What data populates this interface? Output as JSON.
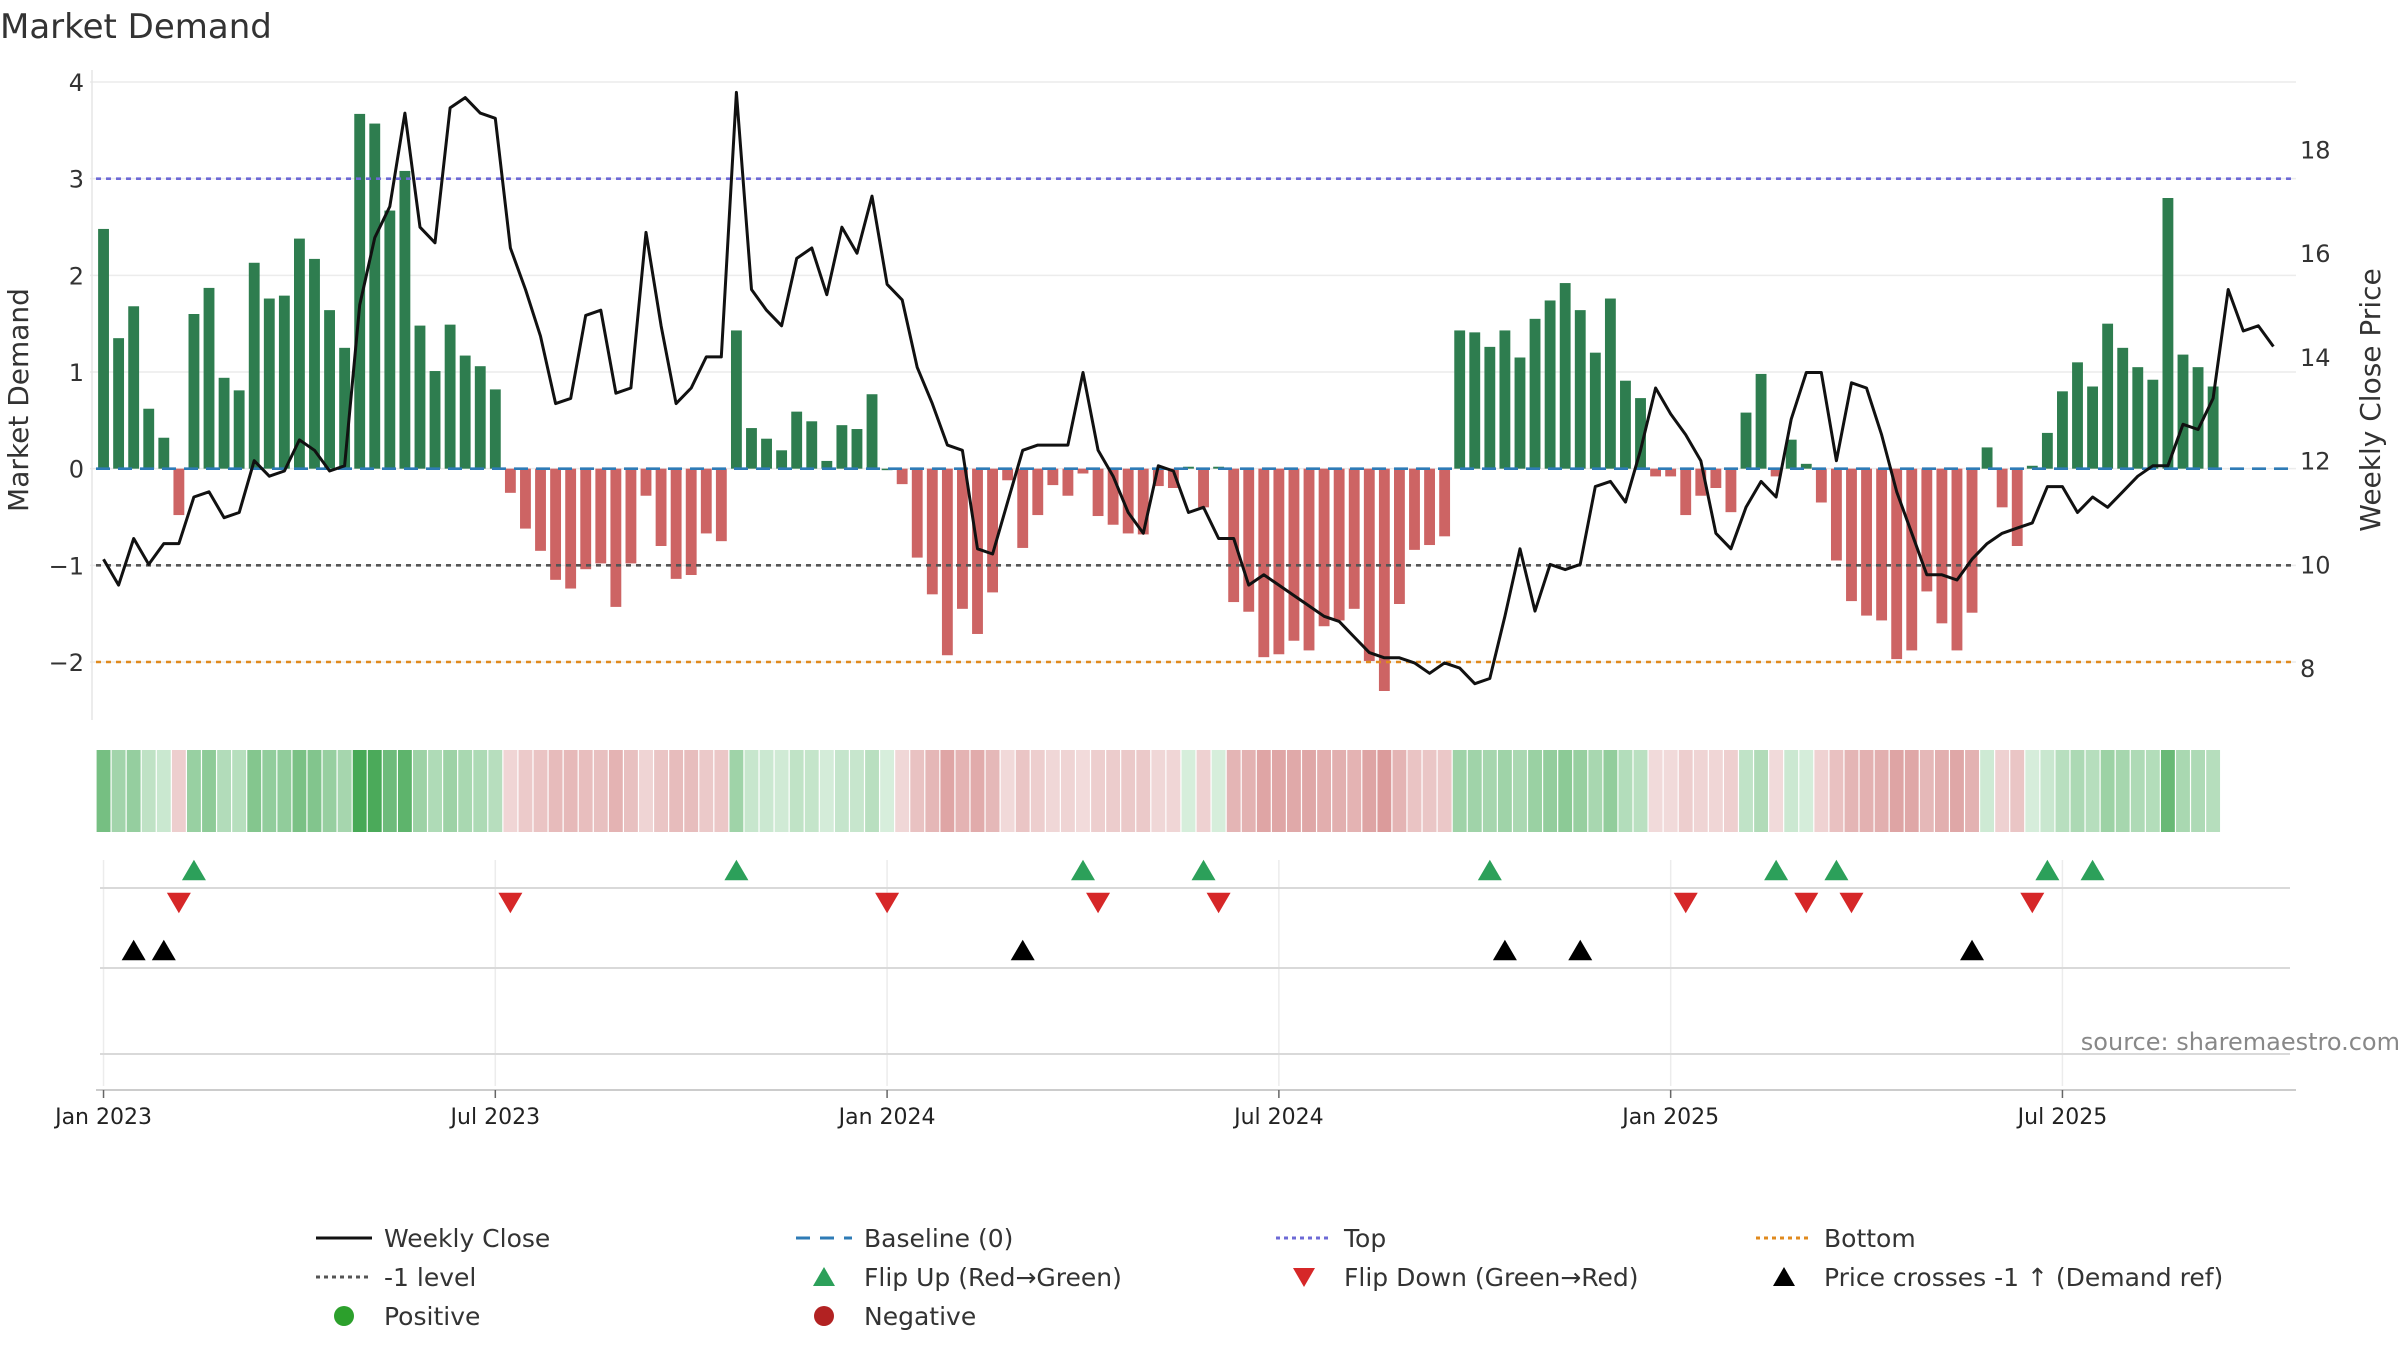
{
  "chart_data": {
    "type": "bar+line",
    "title": "Market Demand",
    "y_left_label": "Market Demand",
    "y_right_label": "Weekly Close Price",
    "y_left_ticks": [
      "4",
      "3",
      "2",
      "1",
      "0",
      "−1",
      "−2"
    ],
    "y_right_ticks": [
      "18",
      "16",
      "14",
      "12",
      "10",
      "8"
    ],
    "y_left_range": [
      -2.6,
      4.0
    ],
    "y_right_range": [
      7.0,
      19.3
    ],
    "x_tick_labels": [
      "Jan 2023",
      "Jul 2023",
      "Jan 2024",
      "Jul 2024",
      "Jan 2025",
      "Jul 2025"
    ],
    "x_tick_week_index": [
      0.5,
      26.5,
      52.5,
      78.5,
      104.5,
      130.5
    ],
    "reference_lines": {
      "top": 3,
      "minus_one_level": -1,
      "bottom": -2,
      "baseline": 0
    },
    "weeks": 146,
    "demand": [
      2.48,
      1.35,
      1.68,
      0.62,
      0.32,
      -0.48,
      1.6,
      1.87,
      0.94,
      0.81,
      2.13,
      1.76,
      1.79,
      2.38,
      2.17,
      1.64,
      1.25,
      3.67,
      3.57,
      2.67,
      3.08,
      1.48,
      1.01,
      1.49,
      1.17,
      1.06,
      0.82,
      -0.25,
      -0.62,
      -0.85,
      -1.15,
      -1.24,
      -1.04,
      -0.98,
      -1.43,
      -0.98,
      -0.28,
      -0.8,
      -1.14,
      -1.1,
      -0.67,
      -0.75,
      1.43,
      0.42,
      0.31,
      0.19,
      0.59,
      0.49,
      0.08,
      0.45,
      0.41,
      0.77,
      0.0,
      -0.16,
      -0.92,
      -1.3,
      -1.93,
      -1.45,
      -1.71,
      -1.28,
      -0.12,
      -0.82,
      -0.48,
      -0.17,
      -0.28,
      -0.05,
      -0.49,
      -0.58,
      -0.67,
      -0.68,
      -0.18,
      -0.2,
      0.02,
      -0.4,
      0.02,
      -1.38,
      -1.48,
      -1.95,
      -1.92,
      -1.78,
      -1.88,
      -1.63,
      -1.57,
      -1.45,
      -1.99,
      -2.3,
      -1.4,
      -0.84,
      -0.79,
      -0.7,
      1.43,
      1.41,
      1.26,
      1.43,
      1.15,
      1.55,
      1.74,
      1.92,
      1.64,
      1.2,
      1.76,
      0.91,
      0.73,
      -0.08,
      -0.08,
      -0.48,
      -0.28,
      -0.2,
      -0.45,
      0.58,
      0.98,
      -0.08,
      0.3,
      0.05,
      -0.35,
      -0.95,
      -1.37,
      -1.52,
      -1.57,
      -1.97,
      -1.88,
      -1.27,
      -1.6,
      -1.88,
      -1.49,
      0.22,
      -0.4,
      -0.8,
      0.03,
      0.37,
      0.8,
      1.1,
      0.85,
      1.5,
      1.25,
      1.05,
      0.92,
      2.8,
      1.18,
      1.05,
      0.85
    ],
    "weekly_close": [
      10.1,
      9.6,
      10.5,
      10.0,
      10.4,
      10.4,
      11.3,
      11.4,
      10.9,
      11.0,
      12.0,
      11.7,
      11.8,
      12.4,
      12.2,
      11.8,
      11.9,
      15.0,
      16.3,
      16.9,
      18.7,
      16.5,
      16.2,
      18.8,
      19.0,
      18.7,
      18.6,
      16.1,
      15.3,
      14.4,
      13.1,
      13.2,
      14.8,
      14.9,
      13.3,
      13.4,
      16.4,
      14.6,
      13.1,
      13.4,
      14.0,
      14.0,
      19.1,
      15.3,
      14.9,
      14.6,
      15.9,
      16.1,
      15.2,
      16.5,
      16.0,
      17.1,
      15.4,
      15.1,
      13.8,
      13.1,
      12.3,
      12.2,
      10.3,
      10.2,
      11.2,
      12.2,
      12.3,
      12.3,
      12.3,
      13.7,
      12.2,
      11.7,
      11.0,
      10.6,
      11.9,
      11.8,
      11.0,
      11.1,
      10.5,
      10.5,
      9.6,
      9.8,
      9.6,
      9.4,
      9.2,
      9.0,
      8.9,
      8.6,
      8.3,
      8.2,
      8.2,
      8.1,
      7.9,
      8.1,
      8.0,
      7.7,
      7.8,
      9.0,
      10.3,
      9.1,
      10.0,
      9.9,
      10.0,
      11.5,
      11.6,
      11.2,
      12.2,
      13.4,
      12.9,
      12.5,
      12.0,
      10.6,
      10.3,
      11.1,
      11.6,
      11.3,
      12.8,
      13.7,
      13.7,
      12.0,
      13.5,
      13.4,
      12.5,
      11.4,
      10.6,
      9.8,
      9.8,
      9.7,
      10.1,
      10.4,
      10.6,
      10.7,
      10.8,
      11.5,
      11.5,
      11.0,
      11.3,
      11.1,
      11.4,
      11.7,
      11.9,
      11.9,
      12.7,
      12.6,
      13.2,
      15.3,
      14.5,
      14.6,
      14.2
    ],
    "flip_up_weeks": [
      6,
      42,
      65,
      73,
      92,
      111,
      115,
      129,
      132
    ],
    "flip_down_weeks": [
      5,
      27,
      52,
      66,
      74,
      105,
      113,
      116,
      128
    ],
    "price_cross_weeks": [
      2,
      4,
      61,
      93,
      98,
      124
    ],
    "legend": [
      {
        "label": "Weekly Close",
        "kind": "line",
        "color": "#111111"
      },
      {
        "label": "Baseline (0)",
        "kind": "dash",
        "color": "#2e7bb6"
      },
      {
        "label": "Top",
        "kind": "dot",
        "color": "#6d6ad6"
      },
      {
        "label": "Bottom",
        "kind": "dot",
        "color": "#e08a1e"
      },
      {
        "label": "-1 level",
        "kind": "dot",
        "color": "#555555"
      },
      {
        "label": "Flip Up (Red→Green)",
        "kind": "tri-up",
        "color": "#2ca05a"
      },
      {
        "label": "Flip Down (Green→Red)",
        "kind": "tri-down",
        "color": "#d62728"
      },
      {
        "label": "Price crosses -1 ↑ (Demand ref)",
        "kind": "tri-up",
        "color": "#000000"
      },
      {
        "label": "Positive",
        "kind": "circle",
        "color": "#2ca02c"
      },
      {
        "label": "Negative",
        "kind": "circle",
        "color": "#b22222"
      }
    ],
    "source_note": "source: sharemaestro.com"
  },
  "colors": {
    "positive_bar": "#2e7d4f",
    "negative_bar": "#cd6464",
    "line": "#111111",
    "baseline": "#2e7bb6",
    "top": "#6d6ad6",
    "bottom": "#e08a1e",
    "minus_one": "#555555"
  }
}
